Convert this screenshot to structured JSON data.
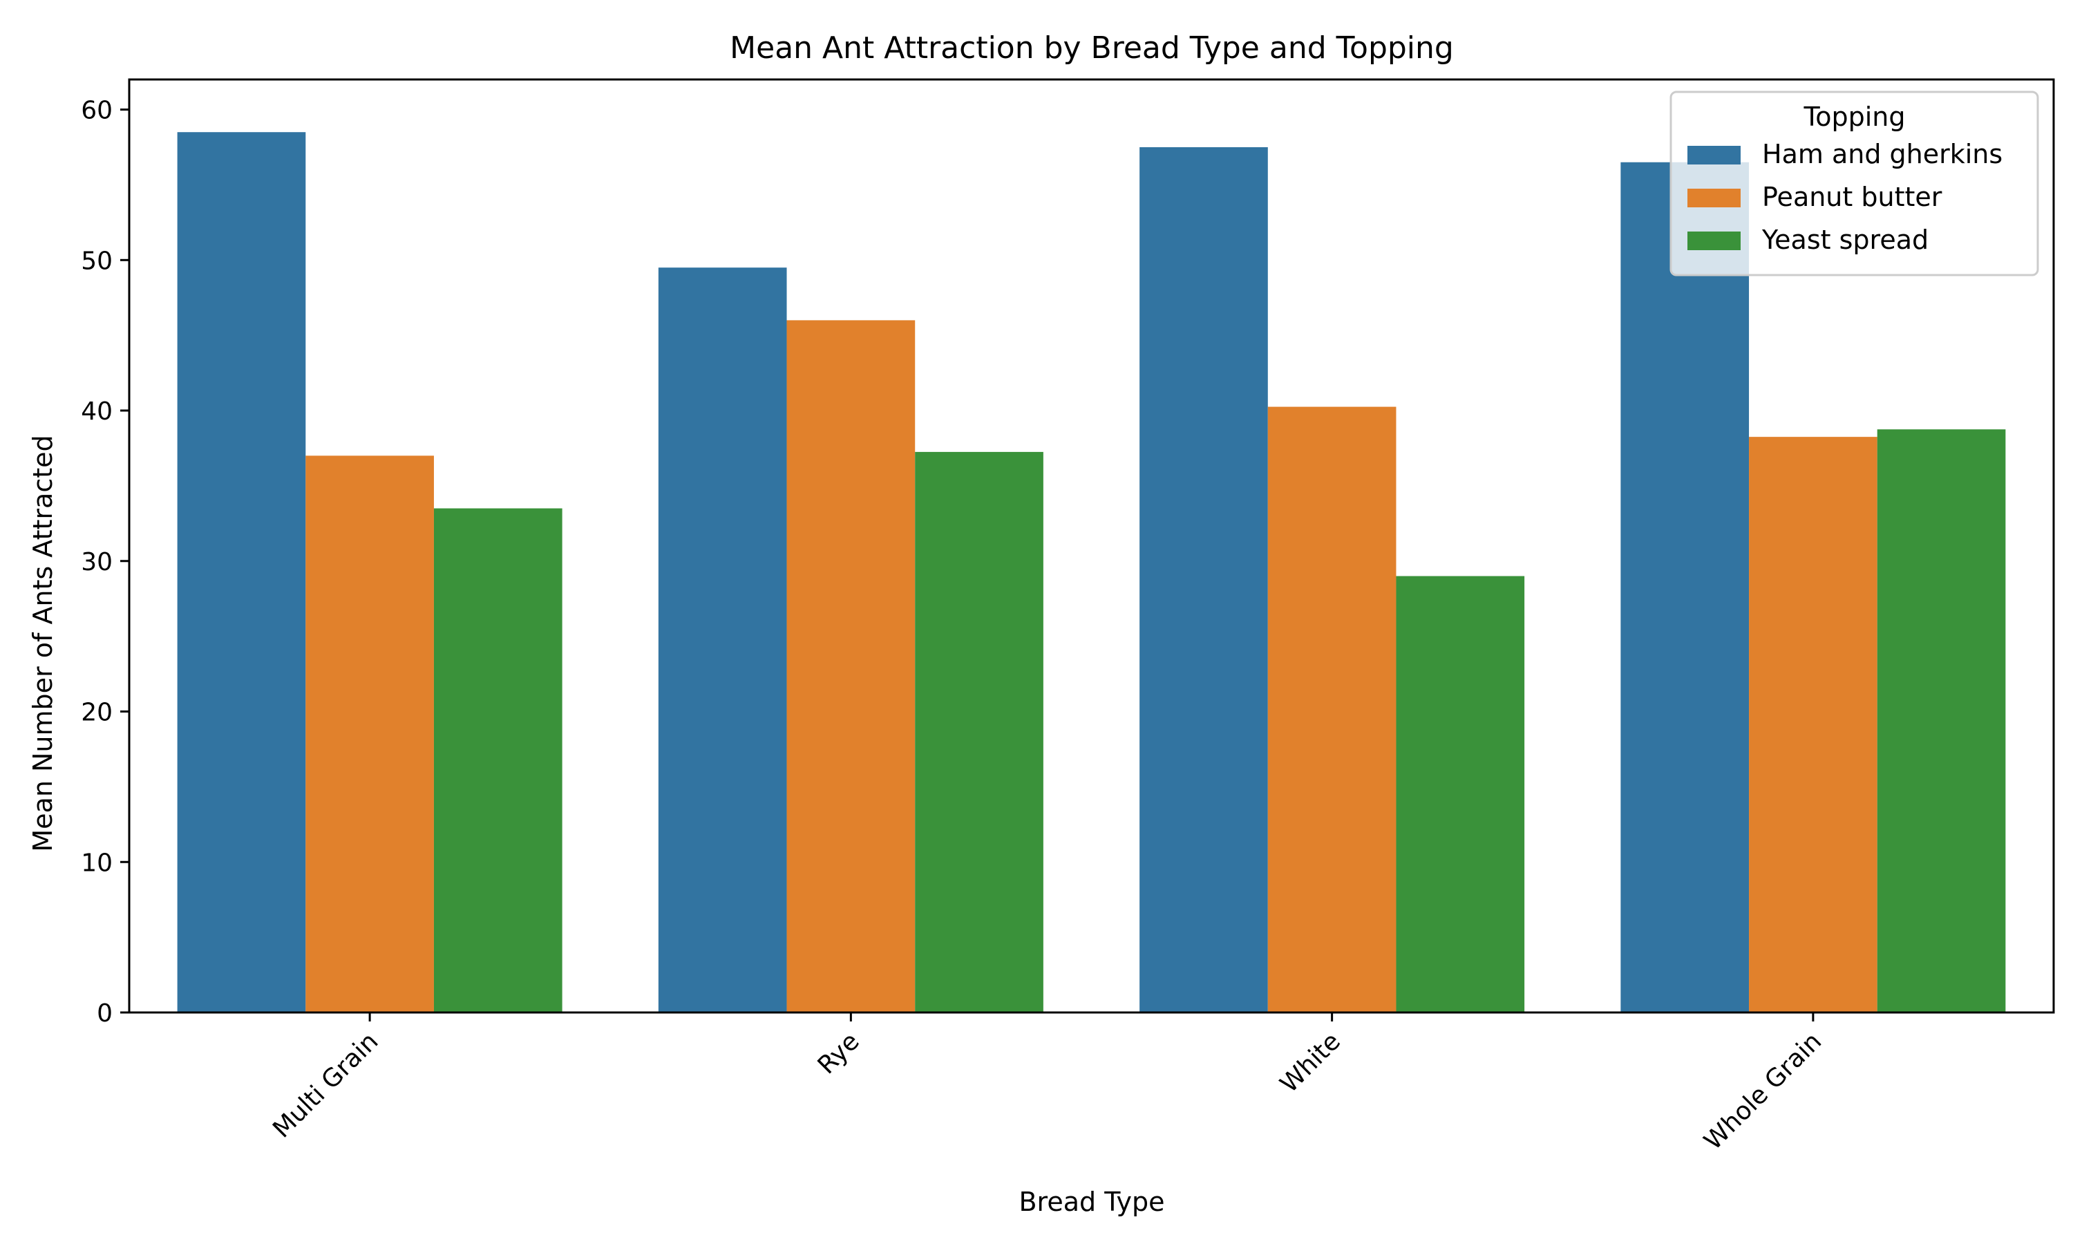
{
  "chart_data": {
    "type": "bar",
    "title": "Mean Ant Attraction by Bread Type and Topping",
    "xlabel": "Bread Type",
    "ylabel": "Mean Number of Ants Attracted",
    "categories": [
      "Multi Grain",
      "Rye",
      "White",
      "Whole Grain"
    ],
    "series": [
      {
        "name": "Ham and gherkins",
        "color": "#3274a1",
        "values": [
          58.5,
          49.5,
          57.5,
          56.5
        ]
      },
      {
        "name": "Peanut butter",
        "color": "#e1812c",
        "values": [
          37.0,
          46.0,
          40.25,
          38.25
        ]
      },
      {
        "name": "Yeast spread",
        "color": "#3a923a",
        "values": [
          33.5,
          37.25,
          29.0,
          38.75
        ]
      }
    ],
    "ylim": [
      0,
      62
    ],
    "yticks": [
      0,
      10,
      20,
      30,
      40,
      50,
      60
    ],
    "grid": false,
    "legend": {
      "title": "Topping",
      "placement": "top-right"
    }
  }
}
